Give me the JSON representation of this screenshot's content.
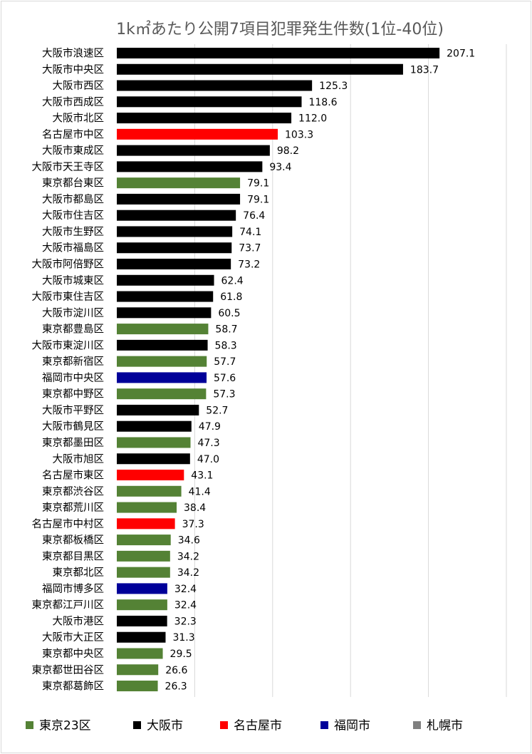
{
  "chart_data": {
    "type": "bar",
    "orientation": "horizontal",
    "title": "1k㎡あたり公開7項目犯罪発生件数(1位-40位)",
    "xlim": [
      0,
      250
    ],
    "grid": true,
    "legend_position": "bottom",
    "groups": [
      {
        "key": "tokyo",
        "name": "東京23区",
        "color": "#548235"
      },
      {
        "key": "osaka",
        "name": "大阪市",
        "color": "#000000"
      },
      {
        "key": "nagoya",
        "name": "名古屋市",
        "color": "#ff0000"
      },
      {
        "key": "fukuoka",
        "name": "福岡市",
        "color": "#000099"
      },
      {
        "key": "sapporo",
        "name": "札幌市",
        "color": "#808080"
      }
    ],
    "categories": [
      "大阪市浪速区",
      "大阪市中央区",
      "大阪市西区",
      "大阪市西成区",
      "大阪市北区",
      "名古屋市中区",
      "大阪市東成区",
      "大阪市天王寺区",
      "東京都台東区",
      "大阪市都島区",
      "大阪市住吉区",
      "大阪市生野区",
      "大阪市福島区",
      "大阪市阿倍野区",
      "大阪市城東区",
      "大阪市東住吉区",
      "大阪市淀川区",
      "東京都豊島区",
      "大阪市東淀川区",
      "東京都新宿区",
      "福岡市中央区",
      "東京都中野区",
      "大阪市平野区",
      "大阪市鶴見区",
      "東京都墨田区",
      "大阪市旭区",
      "名古屋市東区",
      "東京都渋谷区",
      "東京都荒川区",
      "名古屋市中村区",
      "東京都板橋区",
      "東京都目黒区",
      "東京都北区",
      "福岡市博多区",
      "東京都江戸川区",
      "大阪市港区",
      "大阪市大正区",
      "東京都中央区",
      "東京都世田谷区",
      "東京都葛飾区"
    ],
    "values": [
      207.1,
      183.7,
      125.3,
      118.6,
      112.0,
      103.3,
      98.2,
      93.4,
      79.1,
      79.1,
      76.4,
      74.1,
      73.7,
      73.2,
      62.4,
      61.8,
      60.5,
      58.7,
      58.3,
      57.7,
      57.6,
      57.3,
      52.7,
      47.9,
      47.3,
      47.0,
      43.1,
      41.4,
      38.4,
      37.3,
      34.6,
      34.2,
      34.2,
      32.4,
      32.4,
      32.3,
      31.3,
      29.5,
      26.6,
      26.3
    ],
    "value_labels": [
      "207.1",
      "183.7",
      "125.3",
      "118.6",
      "112.0",
      "103.3",
      "98.2",
      "93.4",
      "79.1",
      "79.1",
      "76.4",
      "74.1",
      "73.7",
      "73.2",
      "62.4",
      "61.8",
      "60.5",
      "58.7",
      "58.3",
      "57.7",
      "57.6",
      "57.3",
      "52.7",
      "47.9",
      "47.3",
      "47.0",
      "43.1",
      "41.4",
      "38.4",
      "37.3",
      "34.6",
      "34.2",
      "34.2",
      "32.4",
      "32.4",
      "32.3",
      "31.3",
      "29.5",
      "26.6",
      "26.3"
    ],
    "group_of_bar": [
      "osaka",
      "osaka",
      "osaka",
      "osaka",
      "osaka",
      "nagoya",
      "osaka",
      "osaka",
      "tokyo",
      "osaka",
      "osaka",
      "osaka",
      "osaka",
      "osaka",
      "osaka",
      "osaka",
      "osaka",
      "tokyo",
      "osaka",
      "tokyo",
      "fukuoka",
      "tokyo",
      "osaka",
      "osaka",
      "tokyo",
      "osaka",
      "nagoya",
      "tokyo",
      "tokyo",
      "nagoya",
      "tokyo",
      "tokyo",
      "tokyo",
      "fukuoka",
      "tokyo",
      "osaka",
      "osaka",
      "tokyo",
      "tokyo",
      "tokyo"
    ]
  }
}
